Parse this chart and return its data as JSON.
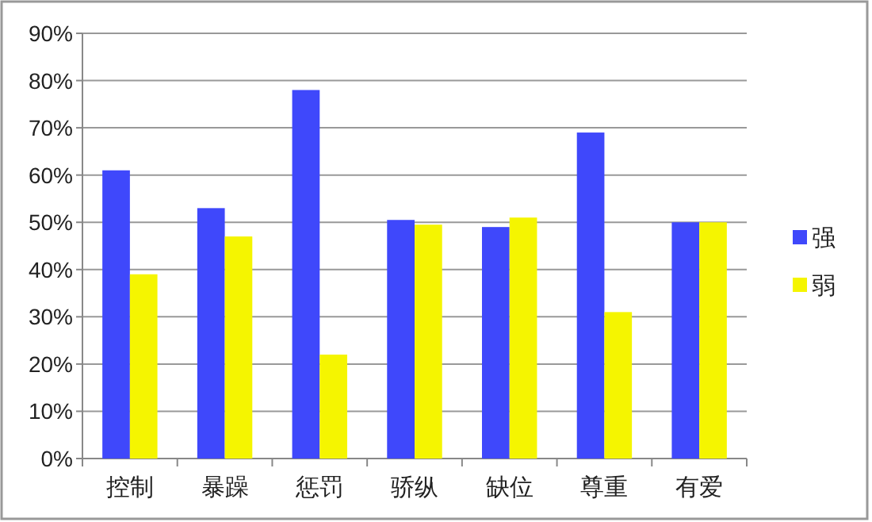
{
  "chart_data": {
    "type": "bar",
    "categories": [
      "控制",
      "暴躁",
      "惩罚",
      "骄纵",
      "缺位",
      "尊重",
      "有爱"
    ],
    "series": [
      {
        "name": "强",
        "color": "#3f48fb",
        "values": [
          61,
          53,
          78,
          50.5,
          49,
          69,
          50
        ]
      },
      {
        "name": "弱",
        "color": "#f5f500",
        "values": [
          39,
          47,
          22,
          49.5,
          51,
          31,
          50
        ]
      }
    ],
    "ylim": [
      0,
      90
    ],
    "yticks": [
      {
        "value": 0,
        "label": "0%"
      },
      {
        "value": 10,
        "label": "10%"
      },
      {
        "value": 20,
        "label": "20%"
      },
      {
        "value": 30,
        "label": "30%"
      },
      {
        "value": 40,
        "label": "40%"
      },
      {
        "value": 50,
        "label": "50%"
      },
      {
        "value": 60,
        "label": "60%"
      },
      {
        "value": 70,
        "label": "70%"
      },
      {
        "value": 80,
        "label": "80%"
      },
      {
        "value": 90,
        "label": "90%"
      }
    ],
    "grid": "y",
    "legend": "right"
  }
}
